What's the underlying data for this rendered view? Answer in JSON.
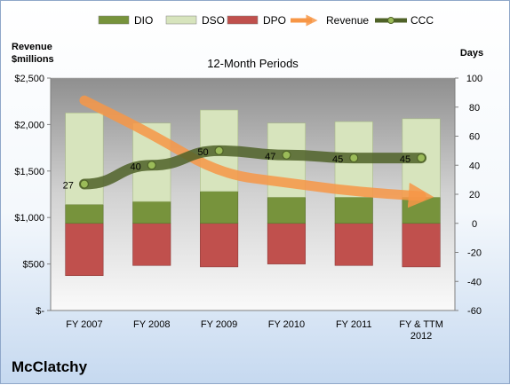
{
  "company": "McClatchy",
  "chart_data": {
    "type": "bar",
    "title": "12-Month Periods",
    "categories": [
      "FY 2007",
      "FY 2008",
      "FY 2009",
      "FY 2010",
      "FY 2011",
      "FY & TTM\n2012"
    ],
    "left_axis": {
      "label": "Revenue\n$millions",
      "range": [
        0,
        2500
      ],
      "ticks": [
        0,
        500,
        1000,
        1500,
        2000,
        2500
      ],
      "tick_labels": [
        "$-",
        "$500",
        "$1,000",
        "$1,500",
        "$2,000",
        "$2,500"
      ]
    },
    "right_axis": {
      "label": "Days",
      "range": [
        -60,
        100
      ],
      "ticks": [
        -60,
        -40,
        -20,
        0,
        20,
        40,
        60,
        80,
        100
      ],
      "tick_labels": [
        "-60",
        "-40",
        "-20",
        "0",
        "20",
        "40",
        "60",
        "80",
        "100"
      ]
    },
    "series": [
      {
        "name": "DIO",
        "axis": "right",
        "type": "bar",
        "color": "#77933c",
        "values": [
          13,
          15,
          22,
          18,
          18,
          18
        ]
      },
      {
        "name": "DSO",
        "axis": "right",
        "type": "bar",
        "color": "#d7e4bd",
        "values": [
          63,
          54,
          56,
          51,
          52,
          54
        ]
      },
      {
        "name": "DPO",
        "axis": "right",
        "type": "bar",
        "color": "#c0504d",
        "values": [
          -36,
          -29,
          -30,
          -28,
          -29,
          -30
        ]
      },
      {
        "name": "Revenue",
        "axis": "left",
        "type": "trend-arrow",
        "color": "#f79646",
        "values": [
          2260,
          1900,
          1470,
          1375,
          1280,
          1230
        ]
      },
      {
        "name": "CCC",
        "axis": "right",
        "type": "line",
        "color": "#4f6228",
        "values": [
          27,
          40,
          50,
          47,
          45,
          45
        ],
        "labels": [
          "27",
          "40",
          "50",
          "47",
          "45",
          "45"
        ]
      }
    ],
    "legend_position": "top",
    "grid": false
  }
}
